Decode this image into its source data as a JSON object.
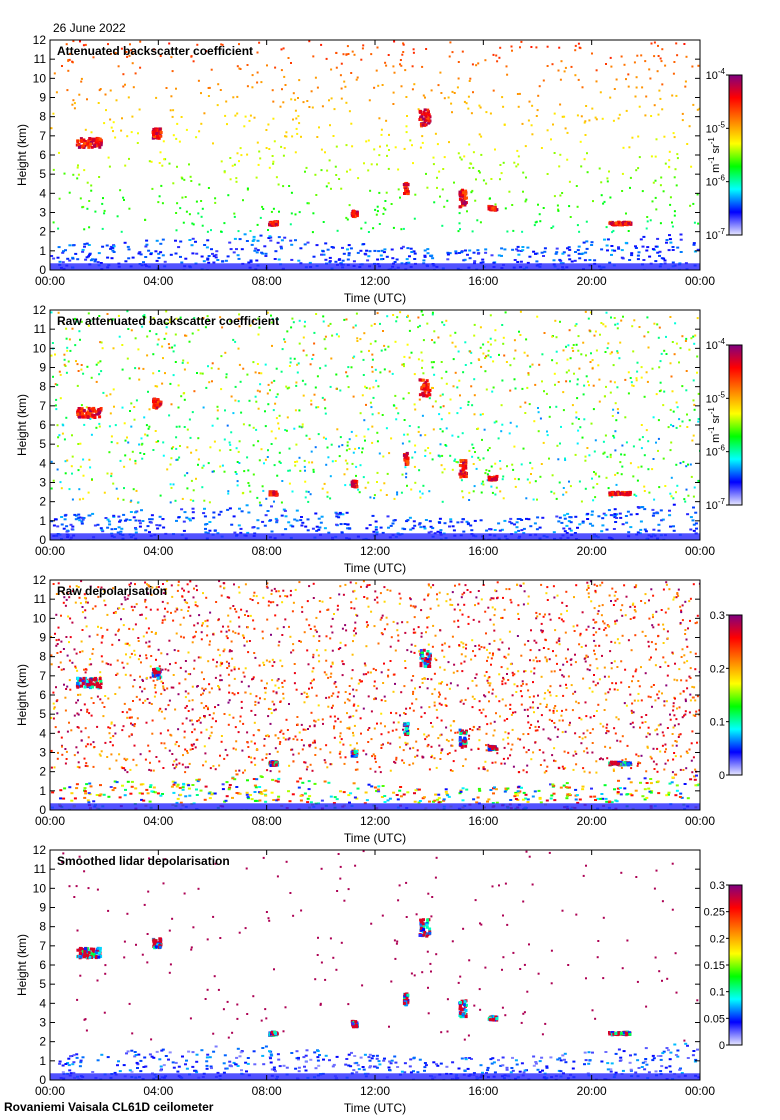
{
  "header": {
    "date": "26 June 2022"
  },
  "footer": {
    "instrument": "Rovaniemi Vaisala CL61D ceilometer"
  },
  "colormap": [
    "#e8e8ff",
    "#0000ff",
    "#00ffff",
    "#00ff00",
    "#ffff00",
    "#ff8000",
    "#ff0000",
    "#800080"
  ],
  "chart_data": [
    {
      "type": "heatmap",
      "title": "Attenuated backscatter coefficient",
      "xlabel": "Time (UTC)",
      "ylabel": "Height (km)",
      "x_ticks": [
        "00:00",
        "04:00",
        "08:00",
        "12:00",
        "16:00",
        "20:00",
        "00:00"
      ],
      "xlim_hours": [
        0,
        24
      ],
      "ylim": [
        0,
        12
      ],
      "y_ticks": [
        "0",
        "1",
        "2",
        "3",
        "4",
        "5",
        "6",
        "7",
        "8",
        "9",
        "10",
        "11",
        "12"
      ],
      "colorbar": {
        "scale": "log",
        "ticks": [
          {
            "base": "10",
            "exp": "-4"
          },
          {
            "base": "10",
            "exp": "-5"
          },
          {
            "base": "10",
            "exp": "-6"
          },
          {
            "base": "10",
            "exp": "-7"
          }
        ],
        "units": {
          "u1": "m",
          "e1": "-1",
          "u2": " sr",
          "e2": "-1"
        }
      },
      "style": "cloud",
      "noise_level": 0.32
    },
    {
      "type": "heatmap",
      "title": "Raw attenuated backscatter coefficient",
      "xlabel": "Time (UTC)",
      "ylabel": "Height (km)",
      "x_ticks": [
        "00:00",
        "04:00",
        "08:00",
        "12:00",
        "16:00",
        "20:00",
        "00:00"
      ],
      "xlim_hours": [
        0,
        24
      ],
      "ylim": [
        0,
        12
      ],
      "y_ticks": [
        "0",
        "1",
        "2",
        "3",
        "4",
        "5",
        "6",
        "7",
        "8",
        "9",
        "10",
        "11",
        "12"
      ],
      "colorbar": {
        "scale": "log",
        "ticks": [
          {
            "base": "10",
            "exp": "-4"
          },
          {
            "base": "10",
            "exp": "-5"
          },
          {
            "base": "10",
            "exp": "-6"
          },
          {
            "base": "10",
            "exp": "-7"
          }
        ],
        "units": {
          "u1": "m",
          "e1": "-1",
          "u2": " sr",
          "e2": "-1"
        }
      },
      "style": "raw",
      "noise_level": 0.5
    },
    {
      "type": "heatmap",
      "title": "Raw depolarisation",
      "xlabel": "Time (UTC)",
      "ylabel": "Height (km)",
      "x_ticks": [
        "00:00",
        "04:00",
        "08:00",
        "12:00",
        "16:00",
        "20:00",
        "00:00"
      ],
      "xlim_hours": [
        0,
        24
      ],
      "ylim": [
        0,
        12
      ],
      "y_ticks": [
        "0",
        "1",
        "2",
        "3",
        "4",
        "5",
        "6",
        "7",
        "8",
        "9",
        "10",
        "11",
        "12"
      ],
      "colorbar": {
        "scale": "linear",
        "range": [
          0,
          0.3
        ],
        "ticks": [
          "0",
          "0.1",
          "0.2",
          "0.3"
        ]
      },
      "style": "depol",
      "noise_level": 0.85
    },
    {
      "type": "heatmap",
      "title": "Smoothed lidar depolarisation",
      "xlabel": "Time (UTC)",
      "ylabel": "Height (km)",
      "x_ticks": [
        "00:00",
        "04:00",
        "08:00",
        "12:00",
        "16:00",
        "20:00",
        "00:00"
      ],
      "xlim_hours": [
        0,
        24
      ],
      "ylim": [
        0,
        12
      ],
      "y_ticks": [
        "0",
        "1",
        "2",
        "3",
        "4",
        "5",
        "6",
        "7",
        "8",
        "9",
        "10",
        "11",
        "12"
      ],
      "colorbar": {
        "scale": "linear",
        "range": [
          0,
          0.3
        ],
        "ticks": [
          "0",
          "0.05",
          "0.1",
          "0.15",
          "0.2",
          "0.25",
          "0.3"
        ]
      },
      "style": "smooth",
      "noise_level": 0.08
    }
  ]
}
